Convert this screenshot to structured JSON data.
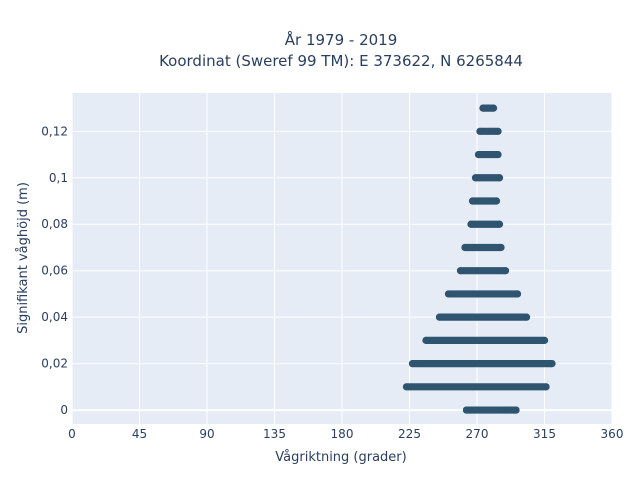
{
  "chart_data": {
    "type": "scatter",
    "title": "År 1979 - 2019",
    "subtitle": "Koordinat (Sweref 99 TM): E 373622, N 6265844",
    "xlabel": "Vågriktning (grader)",
    "ylabel": "Signifikant våghöjd (m)",
    "xlim": [
      0,
      360
    ],
    "ylim": [
      -0.006,
      0.1365
    ],
    "x_ticks": [
      0,
      45,
      90,
      135,
      180,
      225,
      270,
      315,
      360
    ],
    "x_tick_labels": [
      "0",
      "45",
      "90",
      "135",
      "180",
      "225",
      "270",
      "315",
      "360"
    ],
    "y_ticks": [
      0,
      0.02,
      0.04,
      0.06,
      0.08,
      0.1,
      0.12
    ],
    "y_tick_labels": [
      "0",
      "0,02",
      "0,04",
      "0,06",
      "0,08",
      "0,1",
      "0,12"
    ],
    "grid": true,
    "marker_color": "#2f5570",
    "background_color": "#e5ecf6",
    "bands": [
      {
        "y": 0.0,
        "x_min": 263,
        "x_max": 296
      },
      {
        "y": 0.01,
        "x_min": 223,
        "x_max": 316
      },
      {
        "y": 0.02,
        "x_min": 227,
        "x_max": 320
      },
      {
        "y": 0.03,
        "x_min": 236,
        "x_max": 315
      },
      {
        "y": 0.04,
        "x_min": 245,
        "x_max": 303
      },
      {
        "y": 0.05,
        "x_min": 251,
        "x_max": 297
      },
      {
        "y": 0.06,
        "x_min": 259,
        "x_max": 289
      },
      {
        "y": 0.07,
        "x_min": 262,
        "x_max": 286
      },
      {
        "y": 0.08,
        "x_min": 266,
        "x_max": 285
      },
      {
        "y": 0.09,
        "x_min": 267,
        "x_max": 283
      },
      {
        "y": 0.1,
        "x_min": 269,
        "x_max": 285
      },
      {
        "y": 0.11,
        "x_min": 271,
        "x_max": 284
      },
      {
        "y": 0.12,
        "x_min": 272,
        "x_max": 284
      },
      {
        "y": 0.13,
        "x_min": 274,
        "x_max": 281
      }
    ],
    "outliers": [
      {
        "x": 263,
        "y": 0.0
      },
      {
        "x": 266,
        "y": 0.0
      },
      {
        "x": 289,
        "y": 0.0
      },
      {
        "x": 291,
        "y": 0.0
      },
      {
        "x": 295,
        "y": 0.0
      },
      {
        "x": 296,
        "y": 0.0
      }
    ]
  }
}
